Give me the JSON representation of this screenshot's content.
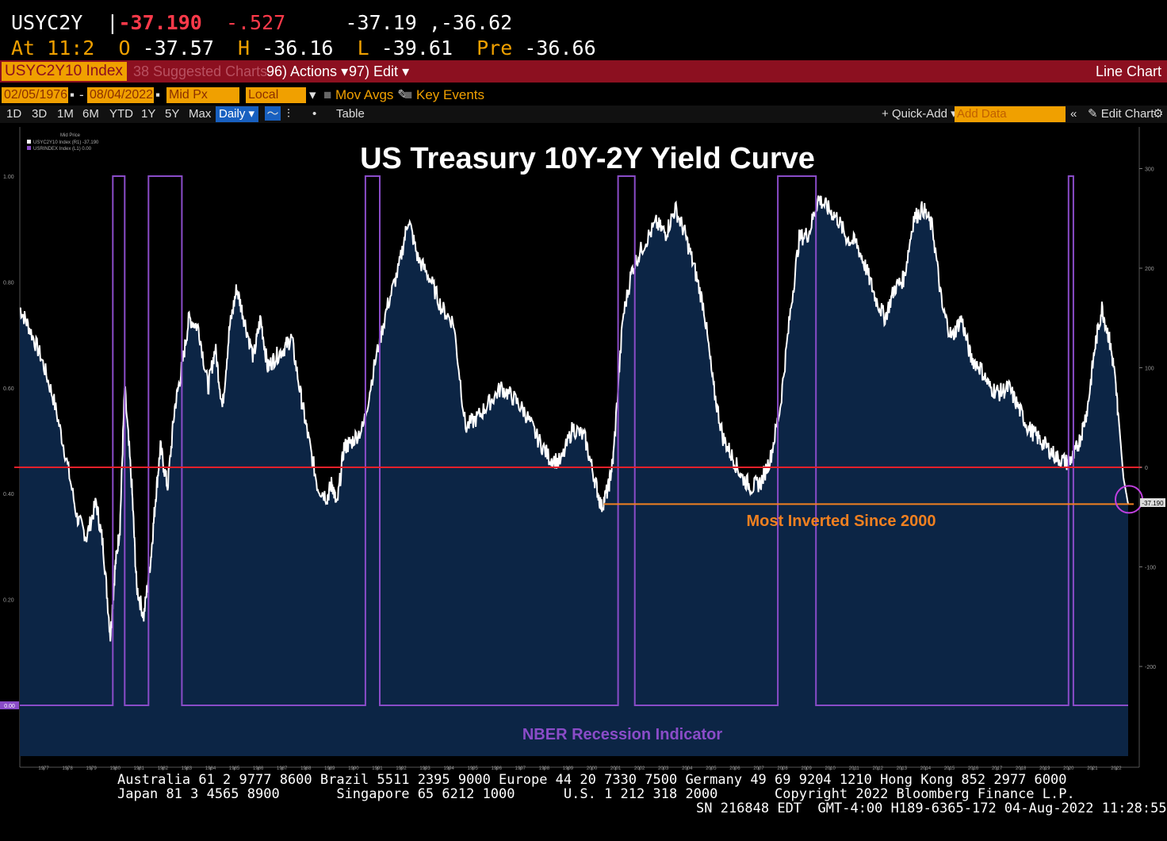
{
  "header": {
    "ticker": "USYC2Y",
    "last": "-37.190",
    "change": "-.527",
    "bid_ask": "-37.19 ,-36.62",
    "time_label": "At 11:2",
    "open_label": "O",
    "open": "-37.57",
    "high_label": "H",
    "high": "-36.16",
    "low_label": "L",
    "low": "-39.61",
    "prev_label": "Pre",
    "prev": "-36.66"
  },
  "toolbar": {
    "index": "USYC2Y10 Index",
    "suggested": "38 Suggested Charts",
    "actions": "96) Actions",
    "edit": "97) Edit",
    "chart_type": "Line Chart"
  },
  "controls": {
    "start_date": "02/05/1976",
    "end_date": "08/04/2022",
    "price_field": "Mid Px",
    "currency": "Local CCY",
    "mov_avgs": "Mov Avgs",
    "key_events": "Key Events",
    "periods": [
      "1D",
      "3D",
      "1M",
      "6M",
      "YTD",
      "1Y",
      "5Y",
      "Max"
    ],
    "frequency": "Daily",
    "table": "Table",
    "quick_add": "Quick-Add",
    "add_data": "Add Data",
    "edit_chart": "Edit Chart"
  },
  "footer": {
    "line1": "Australia 61 2 9777 8600 Brazil 5511 2395 9000 Europe 44 20 7330 7500 Germany 49 69 9204 1210 Hong Kong 852 2977 6000",
    "line2": "Japan 81 3 4565 8900       Singapore 65 6212 1000      U.S. 1 212 318 2000       Copyright 2022 Bloomberg Finance L.P.",
    "line3": "SN 216848 EDT  GMT-4:00 H189-6365-172 04-Aug-2022 11:28:55"
  },
  "colors": {
    "spread_line": "#ffffff",
    "spread_fill": "#0c2545",
    "recession_line": "#8a4cc8",
    "zero_line": "#e8202a",
    "annotation": "#f08020",
    "circle": "#c040e0",
    "recession_label": "#8a4cc8"
  },
  "chart_data": {
    "type": "line",
    "title": "US Treasury 10Y-2Y Yield Curve",
    "xlim": [
      1976.1,
      2022.6
    ],
    "ylim_right": [
      -290,
      300
    ],
    "ylim_left": [
      -0.1,
      1.2
    ],
    "x_ticks": [
      "1977",
      "1978",
      "1979",
      "1980",
      "1981",
      "1982",
      "1983",
      "1984",
      "1985",
      "1986",
      "1987",
      "1988",
      "1989",
      "1990",
      "1991",
      "1992",
      "1993",
      "1994",
      "1995",
      "1996",
      "1997",
      "1998",
      "1999",
      "2000",
      "2001",
      "2002",
      "2003",
      "2004",
      "2005",
      "2006",
      "2007",
      "2008",
      "2009",
      "2010",
      "2011",
      "2012",
      "2013",
      "2014",
      "2015",
      "2016",
      "2017",
      "2018",
      "2019",
      "2020",
      "2021",
      "2022"
    ],
    "right_ticks": [
      "300",
      "200",
      "100",
      "0",
      "-100",
      "-200"
    ],
    "left_ticks": [
      "1.00",
      "0.80",
      "0.60",
      "0.40",
      "0.20",
      "0.00"
    ],
    "legend": {
      "header": "Mid Price",
      "entries": [
        "USYC2Y10 Index (R1) -37.190",
        "USRINDEX Index (L1) 0.00"
      ]
    },
    "current_label": "-37.190",
    "recession_label_left": "0.00",
    "spread_series": {
      "name": "USYC2Y10 Index",
      "x": [
        1976.1,
        1976.5,
        1977.0,
        1977.5,
        1978.0,
        1978.5,
        1978.9,
        1979.3,
        1979.6,
        1979.9,
        1980.1,
        1980.3,
        1980.5,
        1980.8,
        1981.0,
        1981.3,
        1981.6,
        1981.8,
        1982.0,
        1982.3,
        1982.6,
        1982.9,
        1983.2,
        1983.6,
        1984.0,
        1984.3,
        1984.6,
        1984.9,
        1985.2,
        1985.5,
        1985.9,
        1986.2,
        1986.5,
        1986.8,
        1987.2,
        1987.5,
        1987.9,
        1988.2,
        1988.6,
        1989.0,
        1989.2,
        1989.4,
        1989.7,
        1990.0,
        1990.5,
        1991.0,
        1991.5,
        1992.0,
        1992.4,
        1992.8,
        1993.3,
        1993.8,
        1994.3,
        1994.8,
        1995.3,
        1995.8,
        1996.3,
        1996.8,
        1997.3,
        1997.8,
        1998.3,
        1998.8,
        1999.3,
        1999.8,
        2000.2,
        2000.5,
        2000.8,
        2001.0,
        2001.4,
        2001.8,
        2002.3,
        2002.8,
        2003.2,
        2003.6,
        2004.0,
        2004.4,
        2004.8,
        2005.2,
        2005.6,
        2006.0,
        2006.4,
        2006.8,
        2007.2,
        2007.6,
        2008.0,
        2008.4,
        2008.8,
        2009.2,
        2009.6,
        2010.0,
        2010.4,
        2010.8,
        2011.2,
        2011.6,
        2012.0,
        2012.4,
        2012.8,
        2013.2,
        2013.6,
        2014.0,
        2014.4,
        2014.8,
        2015.2,
        2015.6,
        2016.0,
        2016.4,
        2016.8,
        2017.2,
        2017.6,
        2018.0,
        2018.4,
        2018.8,
        2019.2,
        2019.6,
        2020.0,
        2020.3,
        2020.6,
        2020.9,
        2021.2,
        2021.5,
        2021.8,
        2022.0,
        2022.2,
        2022.4,
        2022.6
      ],
      "y": [
        160,
        140,
        110,
        70,
        15,
        -50,
        -70,
        -35,
        -80,
        -170,
        -100,
        -60,
        80,
        -20,
        -120,
        -150,
        -90,
        -30,
        20,
        -20,
        60,
        100,
        150,
        140,
        80,
        120,
        60,
        140,
        180,
        150,
        110,
        150,
        100,
        110,
        120,
        130,
        70,
        30,
        -20,
        -30,
        -15,
        -40,
        20,
        25,
        40,
        105,
        160,
        200,
        250,
        210,
        190,
        160,
        145,
        40,
        50,
        65,
        80,
        70,
        55,
        30,
        10,
        5,
        40,
        30,
        -10,
        -40,
        -20,
        10,
        150,
        200,
        225,
        245,
        235,
        260,
        235,
        200,
        160,
        80,
        30,
        10,
        -10,
        -20,
        -15,
        10,
        60,
        150,
        230,
        235,
        270,
        260,
        250,
        230,
        225,
        200,
        170,
        150,
        180,
        190,
        250,
        260,
        240,
        160,
        130,
        150,
        110,
        100,
        80,
        75,
        80,
        60,
        40,
        30,
        20,
        10,
        5,
        10,
        30,
        60,
        120,
        160,
        130,
        100,
        50,
        -10,
        -37
      ]
    },
    "recession_series": {
      "name": "USRINDEX Index",
      "periods": [
        [
          1980.0,
          1980.5
        ],
        [
          1981.5,
          1982.9
        ],
        [
          1990.6,
          1991.2
        ],
        [
          2001.2,
          2001.9
        ],
        [
          2007.9,
          2009.5
        ],
        [
          2020.1,
          2020.3
        ]
      ]
    },
    "annotations": [
      {
        "text": "Most Inverted Since 2000",
        "x_from": 2000.6,
        "x_to": 2022.6,
        "y": -37
      },
      {
        "text": "NBER Recession Indicator"
      }
    ]
  }
}
